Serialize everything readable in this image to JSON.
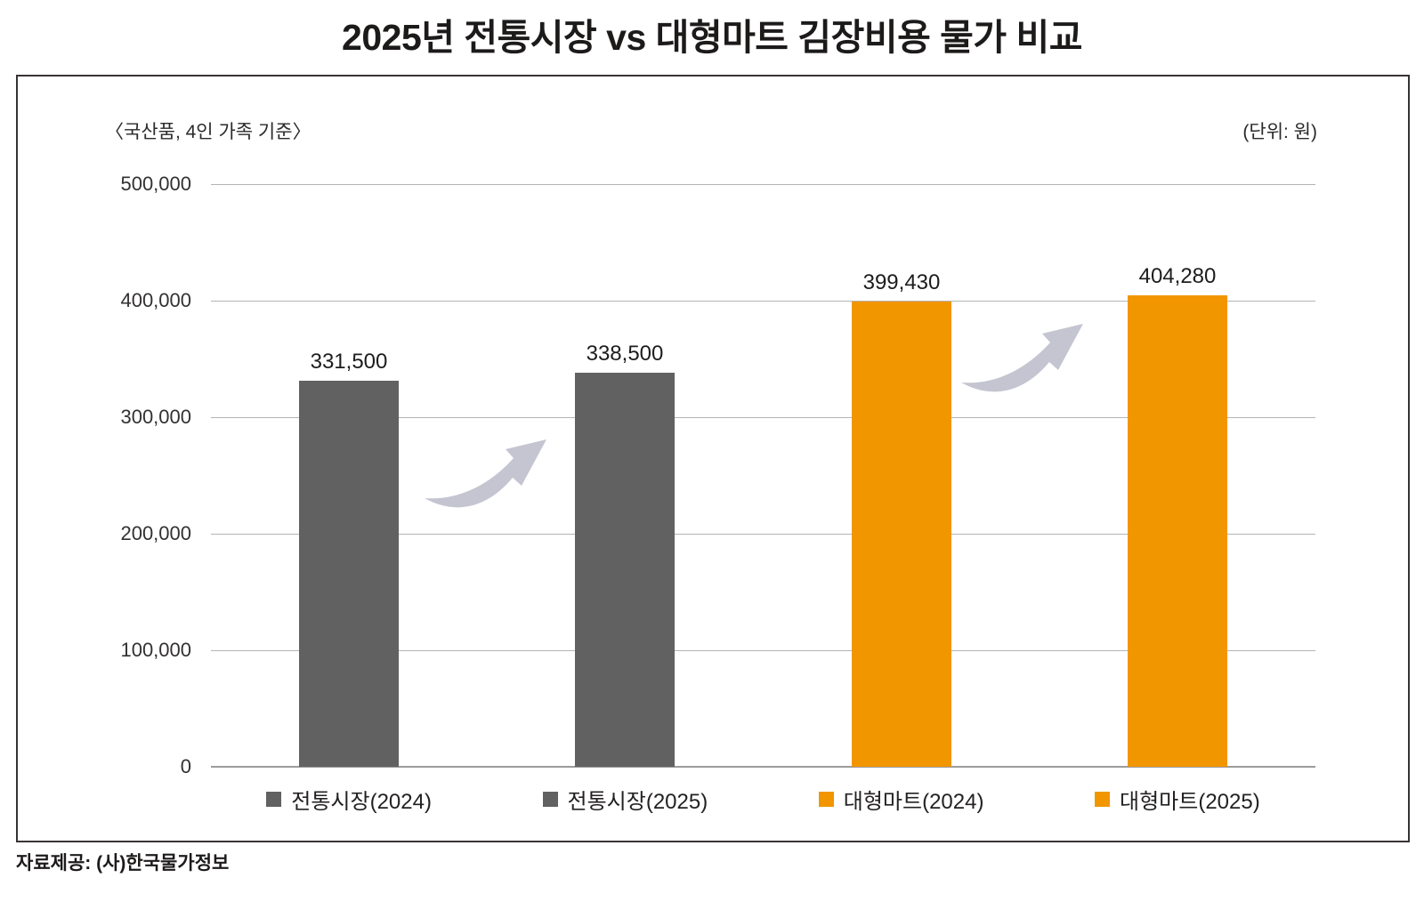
{
  "title": "2025년 전통시장 vs 대형마트 김장비용 물가 비교",
  "notes": {
    "left": "〈국산품, 4인 가족 기준〉",
    "right": "(단위: 원)"
  },
  "source": "자료제공: (사)한국물가정보",
  "colors": {
    "traditional_market": "#616161",
    "large_mart": "#F29600",
    "arrow": "#C4C5D1",
    "grid": "#B4B4B4",
    "axis": "#9C9C9C",
    "frame_border": "#383333"
  },
  "chart_data": {
    "type": "bar",
    "categories": [
      "전통시장(2024)",
      "전통시장(2025)",
      "대형마트(2024)",
      "대형마트(2025)"
    ],
    "values": [
      331500,
      338500,
      399430,
      404280
    ],
    "data_labels": [
      "331,500",
      "338,500",
      "399,430",
      "404,280"
    ],
    "series_colors": [
      "#616161",
      "#616161",
      "#F29600",
      "#F29600"
    ],
    "ylim": [
      0,
      500000
    ],
    "ytick_step": 100000,
    "ytick_labels": [
      "0",
      "100,000",
      "200,000",
      "300,000",
      "400,000",
      "500,000"
    ],
    "grid": true,
    "legend_position": "bottom",
    "annotations": [
      "상승 곡선 화살표 (전통시장 2024 → 2025)",
      "상승 곡선 화살표 (대형마트 2024 → 2025)"
    ]
  }
}
